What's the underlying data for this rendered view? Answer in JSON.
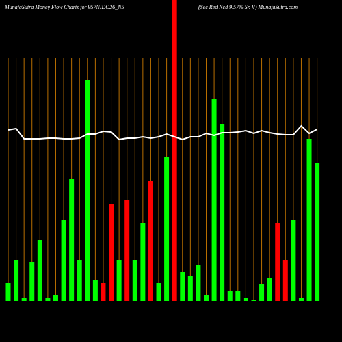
{
  "chart_data": {
    "type": "bar",
    "title": "MunafaSutra  Money Flow  Charts for 957NIDO26_N5",
    "subtitle": "(Sec Red Ncd 9.57% Sr. V) MunafaSutra.com",
    "ylim": [
      0,
      440
    ],
    "series": [
      {
        "type": "bar",
        "colors": [
          "#00ff00",
          "#00ff00",
          "#00ff00",
          "#00ff00",
          "#00ff00",
          "#00ff00",
          "#00ff00",
          "#00ff00",
          "#00ff00",
          "#00ff00",
          "#00ff00",
          "#00ff00",
          "#ff0000",
          "#ff0000",
          "#00ff00",
          "#ff0000",
          "#00ff00",
          "#00ff00",
          "#ff0000",
          "#00ff00",
          "#00ff00",
          "#ff0000",
          "#00ff00",
          "#00ff00",
          "#00ff00",
          "#00ff00",
          "#00ff00",
          "#00ff00",
          "#00ff00",
          "#00ff00",
          "#00ff00",
          "#00ff00",
          "#00ff00",
          "#00ff00",
          "#ff0000",
          "#ff0000",
          "#00ff00",
          "#00ff00",
          "#00ff00",
          "#00ff00"
        ],
        "values": [
          26,
          60,
          4,
          57,
          89,
          5,
          8,
          119,
          178,
          60,
          323,
          31,
          26,
          142,
          60,
          148,
          60,
          114,
          175,
          26,
          210,
          440,
          42,
          37,
          53,
          8,
          295,
          258,
          14,
          14,
          4,
          2,
          25,
          33,
          114,
          60,
          119,
          4,
          237,
          201
        ]
      },
      {
        "type": "line",
        "color": "#ffffff",
        "values": [
          250,
          252,
          237,
          237,
          237,
          238,
          238,
          237,
          237,
          238,
          244,
          244,
          248,
          247,
          236,
          238,
          238,
          240,
          238,
          240,
          244,
          240,
          236,
          240,
          240,
          245,
          242,
          246,
          246,
          247,
          249,
          245,
          249,
          246,
          244,
          243,
          243,
          256,
          245,
          251
        ]
      }
    ]
  }
}
